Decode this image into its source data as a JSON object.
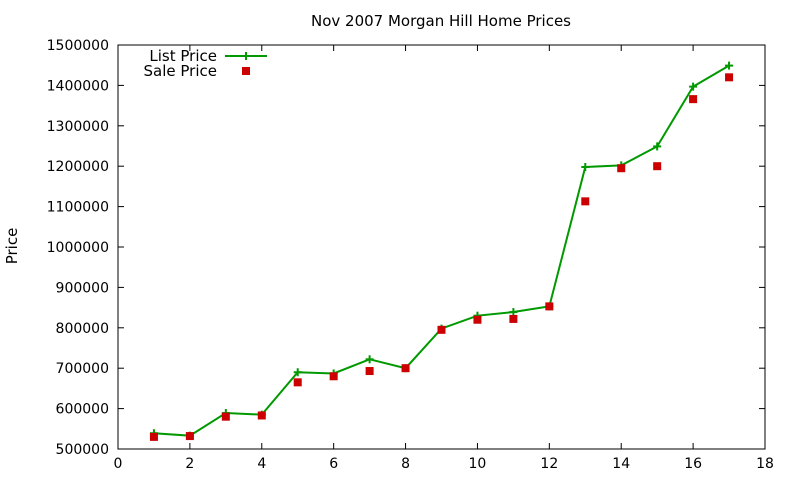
{
  "chart_data": {
    "type": "line",
    "title": "Nov 2007 Morgan Hill Home Prices",
    "xlabel": "",
    "ylabel": "Price",
    "xlim": [
      0,
      18
    ],
    "ylim": [
      500000,
      1500000
    ],
    "xticks": [
      0,
      2,
      4,
      6,
      8,
      10,
      12,
      14,
      16,
      18
    ],
    "yticks": [
      500000,
      600000,
      700000,
      800000,
      900000,
      1000000,
      1100000,
      1200000,
      1300000,
      1400000,
      1500000
    ],
    "grid": false,
    "legend_position": "top-left",
    "series": [
      {
        "name": "List Price",
        "style": "line-with-plus-markers",
        "color": "#009900",
        "x": [
          1,
          2,
          3,
          4,
          5,
          6,
          7,
          8,
          9,
          10,
          11,
          12,
          13,
          14,
          15,
          16,
          17
        ],
        "values": [
          539000,
          533000,
          589000,
          585000,
          690000,
          687000,
          722000,
          700000,
          798000,
          830000,
          839000,
          853000,
          1198000,
          1202000,
          1249000,
          1397000,
          1449000
        ]
      },
      {
        "name": "Sale Price",
        "style": "square-markers",
        "color": "#cc0000",
        "x": [
          1,
          2,
          3,
          4,
          5,
          6,
          7,
          8,
          9,
          10,
          11,
          12,
          13,
          14,
          15,
          16,
          17
        ],
        "values": [
          530000,
          532000,
          580000,
          583000,
          665000,
          680000,
          693000,
          700000,
          795000,
          820000,
          822000,
          853000,
          1113000,
          1195000,
          1200000,
          1366000,
          1420000
        ]
      }
    ]
  }
}
